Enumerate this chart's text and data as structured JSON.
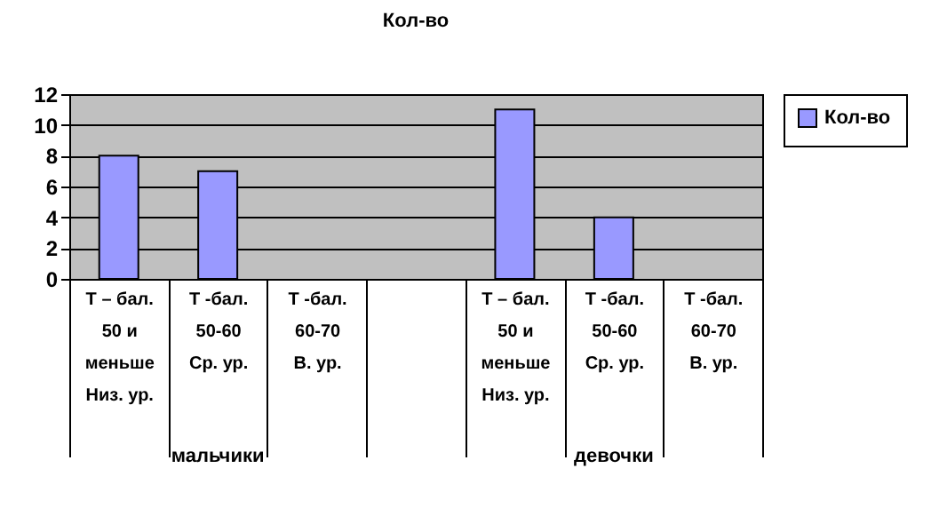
{
  "chart_data": {
    "type": "bar",
    "title": "Кол-во",
    "categories": [
      "Т – бал.\n50 и\nменьше\nНиз. ур.",
      "Т -бал.\n50-60\n\nСр. ур.",
      "Т -бал.\n60-70\n\nВ. ур.",
      null,
      "Т – бал.\n50 и\nменьше\nНиз. ур.",
      "Т -бал.\n50-60\n\nСр. ур.",
      "Т -бал.\n60-70\n\nВ. ур."
    ],
    "series": [
      {
        "name": "Кол-во",
        "color": "#9999ff",
        "values": [
          8,
          7,
          null,
          null,
          11,
          4,
          null
        ]
      }
    ],
    "annotations": [
      "мальчики",
      "девочки"
    ],
    "ylim": [
      0,
      12
    ],
    "yticks": [
      0,
      2,
      4,
      6,
      8,
      10,
      12
    ],
    "grid": "y",
    "legend": "right"
  }
}
